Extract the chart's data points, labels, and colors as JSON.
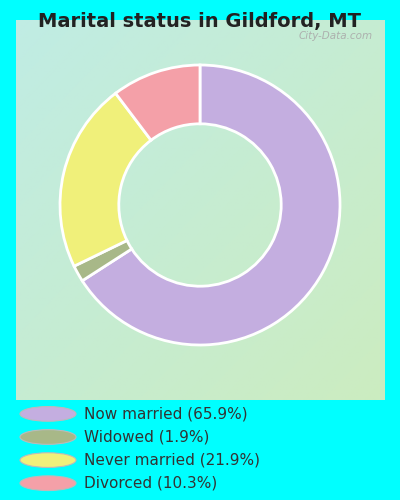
{
  "title": "Marital status in Gildford, MT",
  "slices": [
    65.9,
    1.9,
    21.9,
    10.3
  ],
  "labels": [
    "Now married (65.9%)",
    "Widowed (1.9%)",
    "Never married (21.9%)",
    "Divorced (10.3%)"
  ],
  "colors": [
    "#c4aee0",
    "#a8b888",
    "#f0f07a",
    "#f4a0a8"
  ],
  "bg_top_left": "#c0ece4",
  "bg_bottom_right": "#ccecc0",
  "outer_bg": "#00ffff",
  "title_fontsize": 14,
  "legend_fontsize": 11,
  "watermark": "City-Data.com",
  "start_angle": 90
}
